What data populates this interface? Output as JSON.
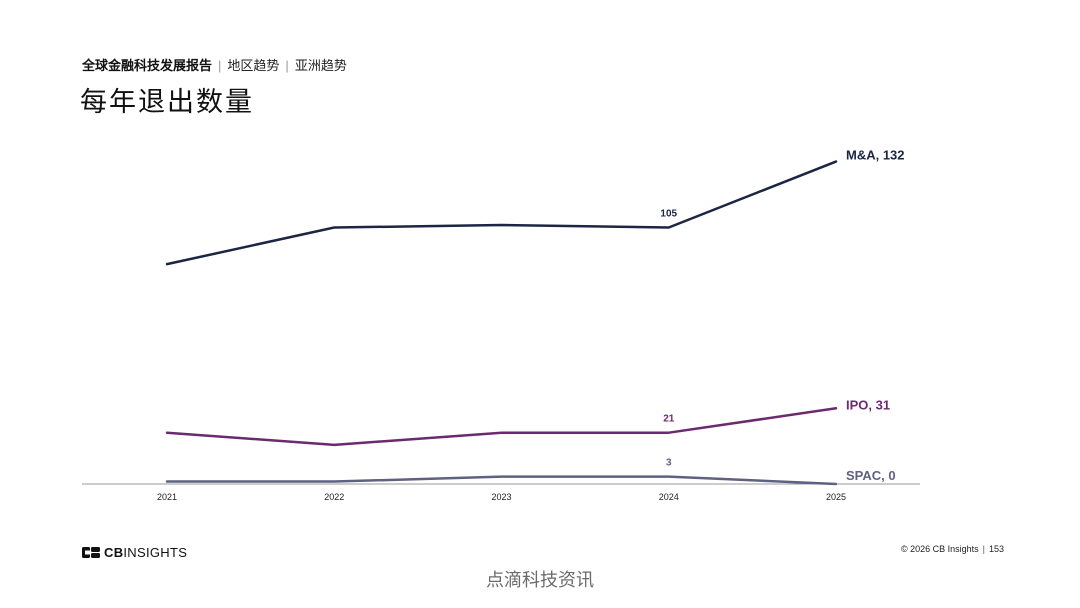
{
  "header": {
    "report": "全球金融科技发展报告",
    "crumb1": "地区趋势",
    "crumb2": "亚洲趋势",
    "separator": "|"
  },
  "title": "每年退出数量",
  "chart_data": {
    "type": "line",
    "x": [
      "2021",
      "2022",
      "2023",
      "2024",
      "2025"
    ],
    "ylim": [
      0,
      140
    ],
    "grid": false,
    "legend": "end-of-line labels",
    "series": [
      {
        "name": "M&A",
        "values": [
          90,
          105,
          106,
          105,
          132
        ],
        "color": "#1b2642",
        "end_label": "M&A, 132",
        "point_label_index": 3,
        "point_label": "105"
      },
      {
        "name": "IPO",
        "values": [
          21,
          16,
          21,
          21,
          31
        ],
        "color": "#6a2a6e",
        "end_label": "IPO, 31",
        "point_label_index": 3,
        "point_label": "21"
      },
      {
        "name": "SPAC",
        "values": [
          1,
          1,
          3,
          3,
          0
        ],
        "color": "#5f6180",
        "end_label": "SPAC, 0",
        "point_label_index": 3,
        "point_label": "3"
      }
    ]
  },
  "brand": {
    "logo_icon": "cb-logo-icon",
    "name_bold": "CB",
    "name_rest": "INSIGHTS"
  },
  "footer": {
    "copyright": "© 2026 CB Insights",
    "separator": "|",
    "page": "153"
  },
  "watermark": "点滴科技资讯"
}
